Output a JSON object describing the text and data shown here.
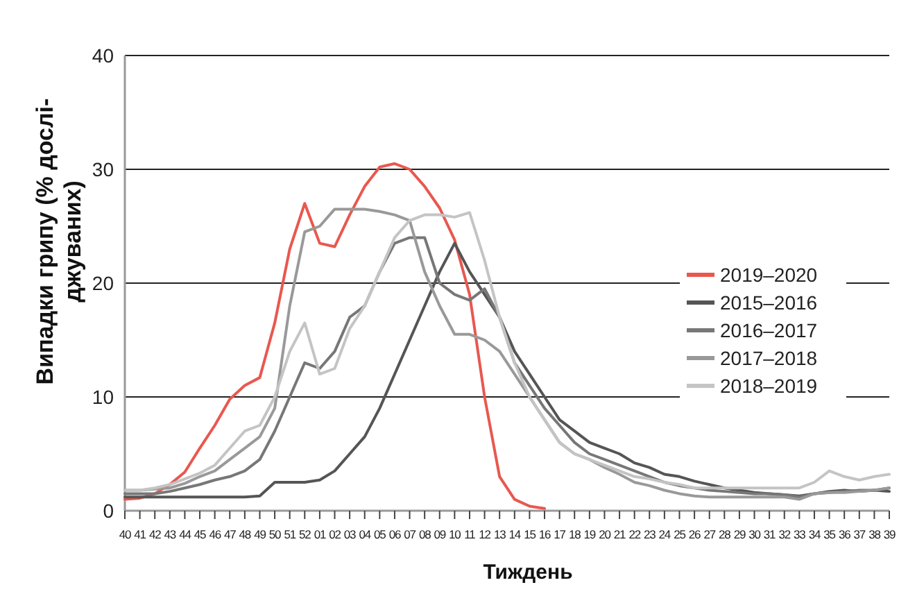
{
  "chart_data": {
    "type": "line",
    "ylabel": "Випадки грипу (% дослі-\nджуваних)",
    "xlabel": "Тиждень",
    "categories": [
      "40",
      "41",
      "42",
      "43",
      "44",
      "45",
      "46",
      "47",
      "48",
      "49",
      "50",
      "51",
      "52",
      "01",
      "02",
      "03",
      "04",
      "05",
      "06",
      "07",
      "08",
      "09",
      "10",
      "11",
      "12",
      "13",
      "14",
      "15",
      "16",
      "17",
      "18",
      "19",
      "20",
      "21",
      "22",
      "23",
      "24",
      "25",
      "26",
      "27",
      "28",
      "29",
      "30",
      "31",
      "32",
      "33",
      "34",
      "35",
      "36",
      "37",
      "38",
      "39"
    ],
    "ylim": [
      0,
      40
    ],
    "yticks": [
      0,
      10,
      20,
      30,
      40
    ],
    "grid": "y",
    "legend": "right",
    "marker": "none",
    "line_style": "solid",
    "series": [
      {
        "name": "2019–2020",
        "color": "#e8584f",
        "values": [
          1.0,
          1.1,
          1.5,
          2.3,
          3.4,
          5.5,
          7.5,
          9.8,
          11,
          11.7,
          16.5,
          23,
          27,
          23.5,
          23.2,
          26,
          28.5,
          30.2,
          30.5,
          30,
          28.5,
          26.6,
          23.8,
          19,
          10,
          3,
          1,
          0.4,
          0.2,
          null,
          null,
          null,
          null,
          null,
          null,
          null,
          null,
          null,
          null,
          null,
          null,
          null,
          null,
          null,
          null,
          null,
          null,
          null,
          null,
          null,
          null,
          null
        ]
      },
      {
        "name": "2015–2016",
        "color": "#555555",
        "values": [
          1.2,
          1.2,
          1.2,
          1.2,
          1.2,
          1.2,
          1.2,
          1.2,
          1.2,
          1.3,
          2.5,
          2.5,
          2.5,
          2.7,
          3.5,
          5,
          6.5,
          9,
          12,
          15,
          18,
          21,
          23.5,
          21,
          19,
          17,
          14,
          12,
          10,
          8,
          7,
          6,
          5.5,
          5,
          4.2,
          3.8,
          3.2,
          3,
          2.6,
          2.3,
          2,
          1.8,
          1.6,
          1.5,
          1.4,
          1.3,
          1.5,
          1.7,
          1.8,
          1.7,
          1.8,
          1.7
        ]
      },
      {
        "name": "2016–2017",
        "color": "#777777",
        "values": [
          1.5,
          1.5,
          1.5,
          1.7,
          2,
          2.3,
          2.7,
          3,
          3.5,
          4.5,
          7,
          10,
          13,
          12.5,
          14,
          17,
          18,
          21,
          23.5,
          24,
          24,
          20,
          19,
          18.5,
          19.5,
          17,
          13,
          11,
          9,
          7.5,
          6,
          5,
          4.5,
          4,
          3.5,
          3,
          2.5,
          2.2,
          2,
          1.8,
          1.7,
          1.6,
          1.5,
          1.5,
          1.4,
          1.2,
          1.5,
          1.6,
          1.7,
          1.8,
          1.8,
          2
        ]
      },
      {
        "name": "2017–2018",
        "color": "#999999",
        "values": [
          1.8,
          1.8,
          1.9,
          2,
          2.4,
          3,
          3.5,
          4.5,
          5.5,
          6.5,
          9,
          18,
          24.5,
          25,
          26.5,
          26.5,
          26.5,
          26.3,
          26,
          25.5,
          21,
          18,
          15.5,
          15.5,
          15,
          14,
          12,
          10,
          8,
          6,
          5,
          4.5,
          3.8,
          3.2,
          2.5,
          2.2,
          1.8,
          1.5,
          1.3,
          1.2,
          1.2,
          1.2,
          1.2,
          1.2,
          1.2,
          1,
          1.5,
          1.6,
          1.6,
          1.7,
          1.8,
          2
        ]
      },
      {
        "name": "2018–2019",
        "color": "#c4c4c4",
        "values": [
          1.8,
          1.8,
          2,
          2.3,
          2.8,
          3.3,
          4,
          5.5,
          7,
          7.5,
          10,
          14,
          16.5,
          12,
          12.5,
          16,
          18,
          21,
          24,
          25.5,
          26,
          26,
          25.8,
          26.2,
          22,
          17,
          13,
          10,
          8,
          6,
          5,
          4.5,
          4,
          3.5,
          3,
          2.8,
          2.5,
          2.3,
          2,
          2,
          2,
          2,
          2,
          2,
          2,
          2,
          2.5,
          3.5,
          3,
          2.7,
          3,
          3.2
        ]
      }
    ]
  }
}
